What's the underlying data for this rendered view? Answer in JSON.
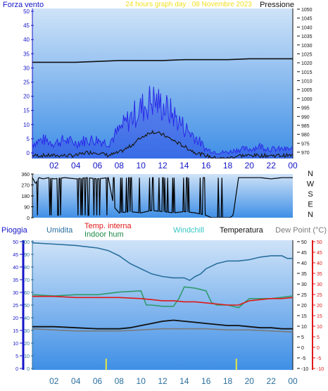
{
  "header": {
    "wind_label": "Forza vento",
    "subtitle": "24 hours graph day : 08 Novembre 2023",
    "pressure_label": "Pressione"
  },
  "legend": {
    "rain": "Pioggia",
    "humidity": "Umidita",
    "temp_internal": "Temp. interna",
    "indoor_hum": "Indoor hum",
    "windchill": "Windchill",
    "temperature": "Temperatura",
    "dewpoint": "Dew Point (°C)"
  },
  "compass": [
    "N",
    "W",
    "S",
    "E",
    "N"
  ],
  "colors": {
    "wind_fill": "#2a2ae8",
    "wind_dark": "#1a1a1a",
    "pressure": "#111111",
    "humidity": "#2a6f9e",
    "indoor_hum": "#2e9a6a",
    "temp_internal": "#e01818",
    "temperature": "#111111",
    "dewpoint": "#7a7a7a",
    "windchill": "#38c6c6",
    "rain_axis": "#2a2ae8",
    "temp_axis": "#e01818",
    "plot_top": "#cfe3f8",
    "plot_bottom": "#3f8fe6"
  },
  "chart_data": [
    {
      "type": "area",
      "name": "wind-pressure",
      "x_ticks": [
        "02",
        "04",
        "06",
        "08",
        "10",
        "12",
        "14",
        "16",
        "18",
        "20",
        "22",
        "00"
      ],
      "x_range": [
        0,
        24
      ],
      "left_axis": {
        "range": [
          0,
          50
        ],
        "ticks": [
          "0",
          "5",
          "10",
          "15",
          "20",
          "25",
          "30",
          "35",
          "40",
          "45",
          "50"
        ]
      },
      "right_axis": {
        "range": [
          965,
          1050
        ],
        "ticks": [
          "970",
          "975",
          "980",
          "985",
          "990",
          "995",
          "1000",
          "1005",
          "1010",
          "1015",
          "1020",
          "1025",
          "1030",
          "1035",
          "1040",
          "1045",
          "1050"
        ]
      },
      "series": [
        {
          "name": "Forza vento",
          "axis": "left",
          "kind": "gust",
          "x": [
            0,
            1,
            2,
            3,
            4,
            5,
            6,
            7,
            8,
            9,
            10,
            11,
            12,
            13,
            14,
            15,
            16,
            17,
            18,
            19,
            20,
            21,
            22,
            23,
            24
          ],
          "y": [
            5,
            6,
            5,
            6,
            5,
            6,
            6,
            5,
            9,
            13,
            16,
            19,
            17,
            14,
            10,
            7,
            3,
            2,
            2,
            3,
            3,
            4,
            3,
            3,
            3
          ]
        },
        {
          "name": "Forza vento media",
          "axis": "left",
          "kind": "avg",
          "x": [
            0,
            1,
            2,
            3,
            4,
            5,
            6,
            7,
            8,
            9,
            10,
            11,
            12,
            13,
            14,
            15,
            16,
            17,
            18,
            19,
            20,
            21,
            22,
            23,
            24
          ],
          "y": [
            1,
            1,
            1,
            1,
            1,
            2,
            2,
            1,
            2,
            4,
            7,
            9,
            8,
            6,
            4,
            2,
            1,
            0,
            0,
            1,
            1,
            1,
            1,
            1,
            1
          ]
        },
        {
          "name": "Pressione",
          "axis": "right",
          "x": [
            0,
            2,
            4,
            6,
            8,
            10,
            12,
            14,
            16,
            18,
            20,
            22,
            24
          ],
          "y": [
            1019.5,
            1019.5,
            1019.5,
            1020,
            1020.5,
            1020.5,
            1020.5,
            1021,
            1021,
            1021,
            1021.5,
            1021.5,
            1021.5
          ]
        }
      ]
    },
    {
      "type": "line",
      "name": "wind-direction",
      "x_range": [
        0,
        24
      ],
      "y_range": [
        0,
        360
      ],
      "y_ticks": [
        "0",
        "90",
        "180",
        "270",
        "360"
      ],
      "series": [
        {
          "name": "Direzione",
          "x": [
            0,
            0.3,
            0.6,
            1,
            1.5,
            2,
            3,
            4,
            5,
            6,
            7,
            7.5,
            8,
            9,
            10,
            11,
            12,
            13,
            14,
            15,
            16,
            16.5,
            17,
            17.5,
            18,
            18.2,
            18.5,
            19,
            20,
            21,
            22,
            23,
            24
          ],
          "y": [
            330,
            280,
            330,
            320,
            330,
            320,
            330,
            320,
            330,
            320,
            330,
            90,
            40,
            50,
            40,
            60,
            50,
            40,
            50,
            40,
            20,
            0,
            0,
            0,
            0,
            0,
            20,
            330,
            330,
            330,
            320,
            330,
            330
          ]
        }
      ]
    },
    {
      "type": "line",
      "name": "temp-humidity",
      "x_ticks": [
        "02",
        "04",
        "06",
        "08",
        "10",
        "12",
        "14",
        "16",
        "18",
        "20",
        "22",
        "00"
      ],
      "x_range": [
        0,
        24
      ],
      "left_axis": {
        "range": [
          0,
          100
        ],
        "ticks": [
          "0",
          "10",
          "20",
          "30",
          "40",
          "50",
          "60",
          "70",
          "80",
          "90",
          "100"
        ]
      },
      "rain_axis": {
        "ticks": [
          "0",
          "5",
          "10",
          "15",
          "20",
          "25",
          "30",
          "35",
          "40",
          "45",
          "50"
        ]
      },
      "right_axis": {
        "range": [
          -10,
          50
        ],
        "ticks": [
          "-10",
          "-5",
          "0",
          "5",
          "10",
          "15",
          "20",
          "25",
          "30",
          "35",
          "40",
          "45",
          "50"
        ]
      },
      "series": [
        {
          "name": "Umidita",
          "axis": "left",
          "x": [
            0,
            2,
            4,
            6,
            7,
            8,
            9,
            10,
            11,
            12,
            13,
            14,
            14.5,
            15,
            15.5,
            16,
            17,
            18,
            19,
            20,
            21,
            22,
            23,
            23.5,
            24
          ],
          "y": [
            98,
            97,
            96,
            94,
            92,
            88,
            82,
            78,
            74,
            72,
            71,
            71,
            69,
            72,
            74,
            78,
            82,
            84,
            84,
            85,
            87,
            88,
            88,
            86,
            86
          ]
        },
        {
          "name": "Indoor hum",
          "axis": "left",
          "x": [
            0,
            2,
            4,
            6,
            8,
            10,
            10.5,
            11,
            12,
            13,
            13.5,
            14,
            15,
            16,
            16.5,
            17,
            18,
            19,
            20,
            21,
            22,
            23,
            24
          ],
          "y": [
            58,
            57,
            58,
            58,
            60,
            61,
            50,
            50,
            49,
            49,
            55,
            64,
            63,
            61,
            52,
            50,
            50,
            48,
            55,
            55,
            55,
            56,
            57
          ]
        },
        {
          "name": "Temp. interna",
          "axis": "right",
          "x": [
            0,
            2,
            4,
            6,
            8,
            10,
            11,
            12,
            13,
            14,
            15,
            16,
            17,
            18,
            19,
            20,
            21,
            22,
            23,
            24
          ],
          "y": [
            24,
            24,
            23.5,
            23.5,
            23.5,
            23,
            22.5,
            22,
            22,
            21.5,
            21.5,
            21,
            20.5,
            20,
            20,
            22,
            22.5,
            23,
            23,
            23.5
          ]
        },
        {
          "name": "Temperatura",
          "axis": "right",
          "x": [
            0,
            2,
            4,
            6,
            8,
            9,
            10,
            11,
            12,
            13,
            14,
            15,
            16,
            17,
            18,
            19,
            20,
            21,
            22,
            23,
            24
          ],
          "y": [
            10,
            10,
            9.5,
            9,
            9,
            9.5,
            10.5,
            11.5,
            12.5,
            13,
            12.5,
            12,
            11.5,
            11,
            10.5,
            10.5,
            10,
            9.5,
            9.5,
            9,
            9
          ]
        },
        {
          "name": "Dew Point",
          "axis": "right",
          "x": [
            0,
            2,
            4,
            6,
            8,
            10,
            12,
            14,
            16,
            18,
            20,
            22,
            24
          ],
          "y": [
            9,
            8.5,
            8,
            8,
            8,
            8.5,
            9,
            9,
            9,
            8.5,
            8.5,
            8,
            7.5
          ]
        },
        {
          "name": "Pioggia",
          "axis": "rain",
          "kind": "bar",
          "x": [
            6.8,
            18.8
          ],
          "y": [
            4,
            4
          ]
        }
      ]
    }
  ]
}
